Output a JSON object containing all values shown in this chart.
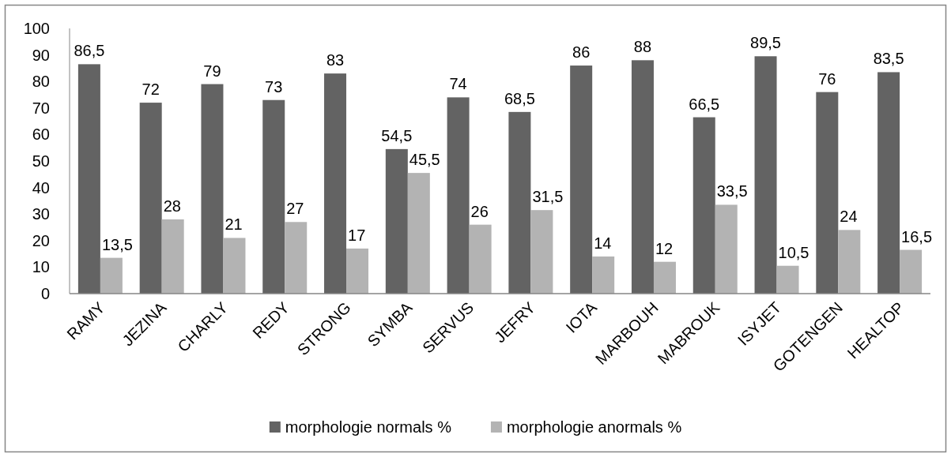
{
  "chart_data": {
    "type": "bar",
    "categories": [
      "RAMY",
      "JEZINA",
      "CHARLY",
      "REDY",
      "STRONG",
      "SYMBA",
      "SERVUS",
      "JEFRY",
      "IOTA",
      "MARBOUH",
      "MABROUK",
      "ISYJET",
      "GOTENGEN",
      "HEALTOP"
    ],
    "series": [
      {
        "name": "morphologie normals %",
        "color": "#636363",
        "values": [
          86.5,
          72,
          79,
          73,
          83,
          54.5,
          74,
          68.5,
          86,
          88,
          66.5,
          89.5,
          76,
          83.5
        ],
        "value_labels": [
          "86,5",
          "72",
          "79",
          "73",
          "83",
          "54,5",
          "74",
          "68,5",
          "86",
          "88",
          "66,5",
          "89,5",
          "76",
          "83,5"
        ]
      },
      {
        "name": "morphologie anormals %",
        "color": "#b3b3b3",
        "values": [
          13.5,
          28,
          21,
          27,
          17,
          45.5,
          26,
          31.5,
          14,
          12,
          33.5,
          10.5,
          24,
          16.5
        ],
        "value_labels": [
          "13,5",
          "28",
          "21",
          "27",
          "17",
          "45,5",
          "26",
          "31,5",
          "14",
          "12",
          "33,5",
          "10,5",
          "24",
          "16,5"
        ]
      }
    ],
    "ylim": [
      0,
      100
    ],
    "yticks": [
      0,
      10,
      20,
      30,
      40,
      50,
      60,
      70,
      80,
      90,
      100
    ],
    "legend": "bottom"
  }
}
